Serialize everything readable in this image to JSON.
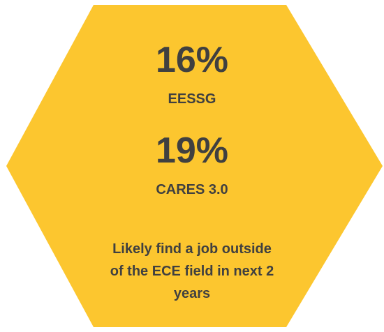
{
  "colors": {
    "hexagon_fill": "#FCC62F",
    "text": "#404040"
  },
  "stats": [
    {
      "value": "16%",
      "label": "EESSG"
    },
    {
      "value": "19%",
      "label": "CARES 3.0"
    }
  ],
  "description": {
    "line1": "Likely find a job outside",
    "line2": "of the ECE field in next 2",
    "line3": "years"
  }
}
